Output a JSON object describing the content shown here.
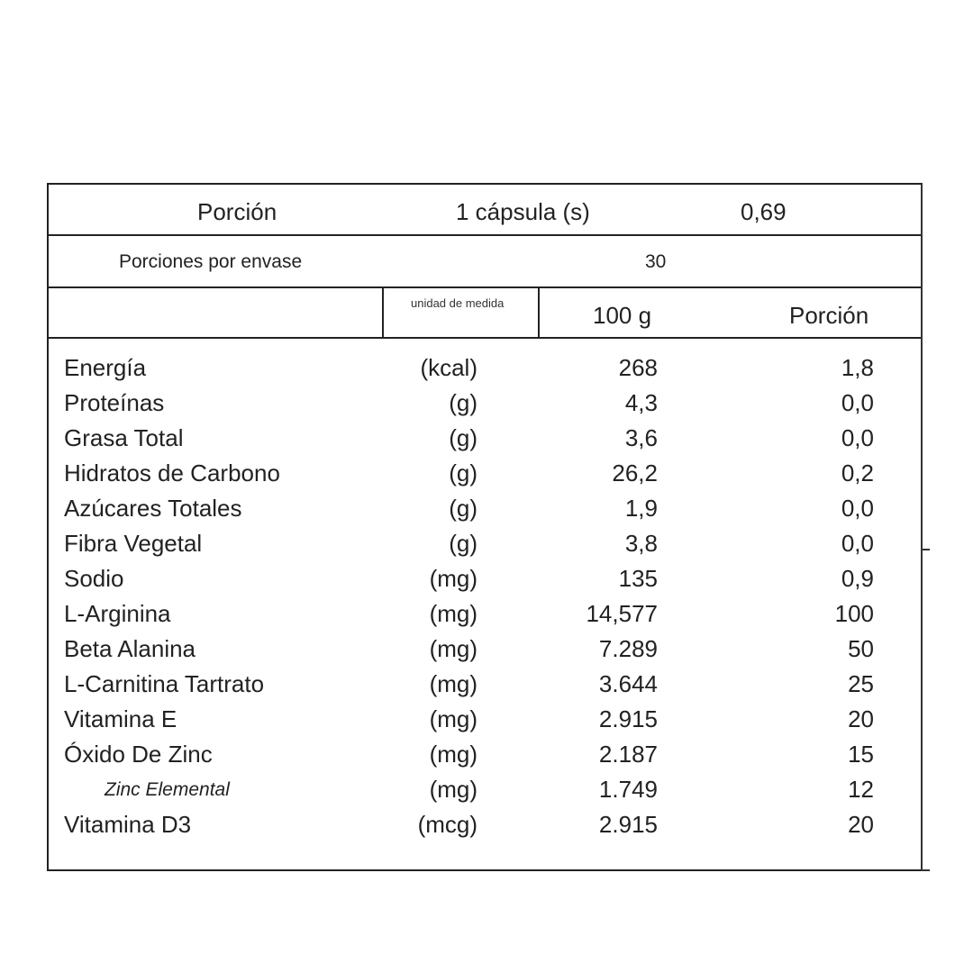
{
  "header": {
    "portion_label": "Porción",
    "portion_value": "1  cápsula (s)",
    "portion_weight": "0,69",
    "servings_label": "Porciones por envase",
    "servings_value": "30",
    "col_unit": "unidad de medida",
    "col_100g": "100 g",
    "col_portion": "Porción"
  },
  "rows": [
    {
      "name": "Energía",
      "unit": "(kcal)",
      "per100": "268",
      "portion": "1,8"
    },
    {
      "name": "Proteínas",
      "unit": "(g)",
      "per100": "4,3",
      "portion": "0,0"
    },
    {
      "name": "Grasa Total",
      "unit": "(g)",
      "per100": "3,6",
      "portion": "0,0"
    },
    {
      "name": "Hidratos de Carbono",
      "unit": "(g)",
      "per100": "26,2",
      "portion": "0,2"
    },
    {
      "name": "Azúcares Totales",
      "unit": "(g)",
      "per100": "1,9",
      "portion": "0,0"
    },
    {
      "name": "Fibra Vegetal",
      "unit": "(g)",
      "per100": "3,8",
      "portion": "0,0"
    },
    {
      "name": "Sodio",
      "unit": "(mg)",
      "per100": "135",
      "portion": "0,9"
    },
    {
      "name": "L-Arginina",
      "unit": "(mg)",
      "per100": "14,577",
      "portion": "100"
    },
    {
      "name": "Beta Alanina",
      "unit": "(mg)",
      "per100": "7.289",
      "portion": "50"
    },
    {
      "name": "L-Carnitina Tartrato",
      "unit": "(mg)",
      "per100": "3.644",
      "portion": "25"
    },
    {
      "name": "Vitamina E",
      "unit": "(mg)",
      "per100": "2.915",
      "portion": "20"
    },
    {
      "name": "Óxido De Zinc",
      "unit": "(mg)",
      "per100": "2.187",
      "portion": "15"
    },
    {
      "name": "Zinc Elemental",
      "unit": "(mg)",
      "per100": "1.749",
      "portion": "12",
      "italic": true
    },
    {
      "name": "Vitamina D3",
      "unit": "(mcg)",
      "per100": "2.915",
      "portion": "20"
    }
  ]
}
